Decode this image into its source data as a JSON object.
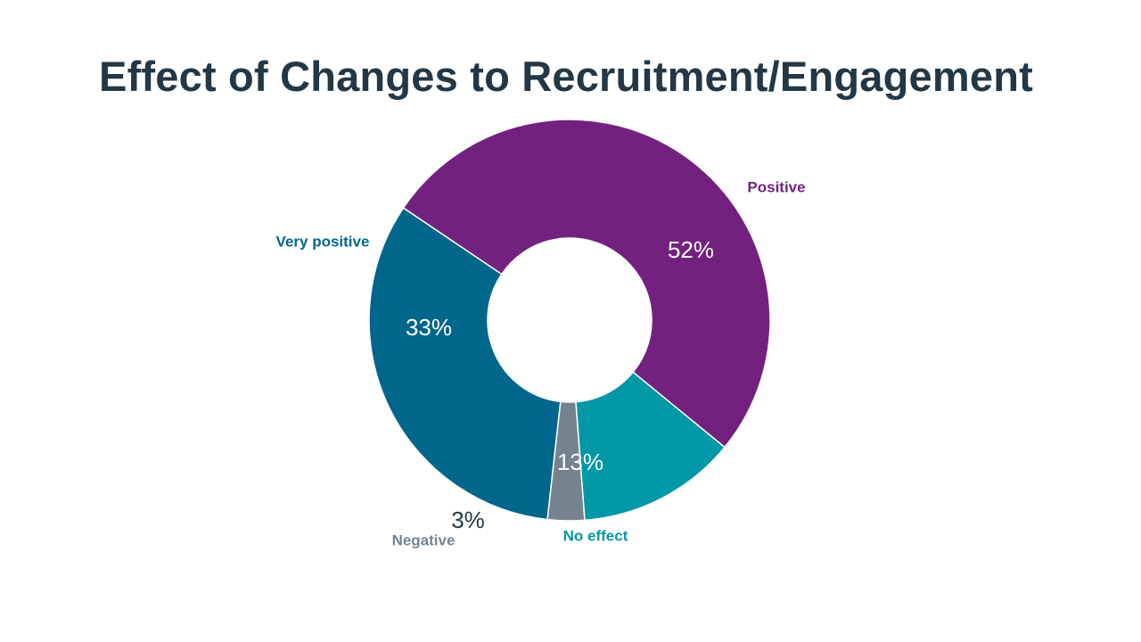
{
  "title": "Effect of Changes to Recruitment/Engagement",
  "chart_data": {
    "type": "pie",
    "donut": true,
    "title": "Effect of Changes to Recruitment/Engagement",
    "categories": [
      "Positive",
      "No effect",
      "Negative",
      "Very positive"
    ],
    "values": [
      52,
      13,
      3,
      33
    ],
    "value_labels": [
      "52%",
      "13%",
      "3%",
      "33%"
    ],
    "colors": [
      "#72227E",
      "#0097A7",
      "#75838F",
      "#00668C"
    ],
    "label_colors": [
      "#72227E",
      "#0097A7",
      "#75838F",
      "#00668C"
    ],
    "value_label_colors": [
      "#ffffff",
      "#ffffff",
      "#233746",
      "#ffffff"
    ],
    "legend": "none"
  }
}
